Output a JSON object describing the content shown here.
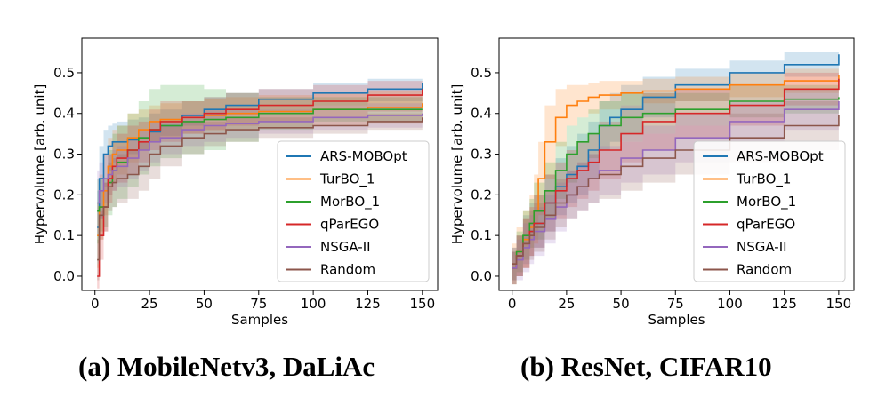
{
  "captions": [
    "(a) MobileNetv3, DaLiAc",
    "(b) ResNet, CIFAR10"
  ],
  "chart_data": [
    {
      "type": "line",
      "title": "",
      "xlabel": "Samples",
      "ylabel": "Hypervolume [arb. unit]",
      "xlim": [
        -6,
        157
      ],
      "ylim": [
        -0.035,
        0.585
      ],
      "xticks": [
        0,
        25,
        50,
        75,
        100,
        125,
        150
      ],
      "yticks": [
        0.0,
        0.1,
        0.2,
        0.3,
        0.4,
        0.5
      ],
      "grid": false,
      "legend_position": "lower right",
      "series": [
        {
          "name": "ARS-MOBOpt",
          "color": "#1f77b4",
          "x": [
            1,
            2,
            4,
            6,
            8,
            10,
            15,
            20,
            25,
            30,
            40,
            50,
            60,
            75,
            100,
            125,
            150
          ],
          "y": [
            0.12,
            0.24,
            0.3,
            0.32,
            0.33,
            0.33,
            0.335,
            0.34,
            0.355,
            0.37,
            0.395,
            0.41,
            0.42,
            0.435,
            0.45,
            0.46,
            0.475
          ],
          "band_low": [
            0.03,
            0.14,
            0.22,
            0.26,
            0.28,
            0.29,
            0.3,
            0.31,
            0.33,
            0.345,
            0.37,
            0.385,
            0.395,
            0.405,
            0.42,
            0.43,
            0.445
          ],
          "band_high": [
            0.21,
            0.32,
            0.36,
            0.37,
            0.375,
            0.38,
            0.385,
            0.39,
            0.4,
            0.41,
            0.43,
            0.44,
            0.45,
            0.46,
            0.475,
            0.485,
            0.5
          ]
        },
        {
          "name": "TurBO_1",
          "color": "#ff7f0e",
          "x": [
            1,
            2,
            4,
            6,
            8,
            10,
            15,
            20,
            25,
            30,
            40,
            50,
            60,
            75,
            100,
            125,
            150
          ],
          "y": [
            0.1,
            0.17,
            0.21,
            0.27,
            0.3,
            0.31,
            0.34,
            0.36,
            0.38,
            0.385,
            0.39,
            0.395,
            0.4,
            0.405,
            0.41,
            0.415,
            0.425
          ],
          "band_low": [
            0.02,
            0.09,
            0.15,
            0.2,
            0.23,
            0.25,
            0.28,
            0.31,
            0.33,
            0.34,
            0.35,
            0.355,
            0.36,
            0.365,
            0.37,
            0.375,
            0.385
          ],
          "band_high": [
            0.18,
            0.25,
            0.3,
            0.34,
            0.36,
            0.37,
            0.4,
            0.41,
            0.42,
            0.425,
            0.43,
            0.435,
            0.44,
            0.445,
            0.45,
            0.455,
            0.465
          ]
        },
        {
          "name": "MorBO_1",
          "color": "#2ca02c",
          "x": [
            1,
            2,
            4,
            6,
            8,
            10,
            15,
            20,
            25,
            30,
            40,
            50,
            60,
            75,
            100,
            125,
            150
          ],
          "y": [
            0.16,
            0.17,
            0.17,
            0.23,
            0.26,
            0.28,
            0.31,
            0.34,
            0.36,
            0.37,
            0.38,
            0.385,
            0.39,
            0.4,
            0.41,
            0.41,
            0.41
          ],
          "band_low": [
            0.08,
            0.11,
            0.12,
            0.15,
            0.17,
            0.19,
            0.22,
            0.25,
            0.27,
            0.29,
            0.3,
            0.31,
            0.33,
            0.36,
            0.38,
            0.38,
            0.38
          ],
          "band_high": [
            0.24,
            0.24,
            0.24,
            0.31,
            0.35,
            0.37,
            0.4,
            0.43,
            0.46,
            0.47,
            0.47,
            0.46,
            0.45,
            0.44,
            0.44,
            0.44,
            0.44
          ]
        },
        {
          "name": "qParEGO",
          "color": "#d62728",
          "x": [
            1,
            2,
            4,
            6,
            8,
            10,
            15,
            20,
            25,
            30,
            40,
            50,
            60,
            75,
            100,
            125,
            150
          ],
          "y": [
            0.0,
            0.1,
            0.17,
            0.24,
            0.27,
            0.29,
            0.31,
            0.33,
            0.36,
            0.38,
            0.39,
            0.4,
            0.41,
            0.42,
            0.43,
            0.445,
            0.46
          ],
          "band_low": [
            -0.03,
            0.04,
            0.11,
            0.18,
            0.21,
            0.23,
            0.25,
            0.28,
            0.31,
            0.33,
            0.35,
            0.36,
            0.37,
            0.38,
            0.39,
            0.405,
            0.42
          ],
          "band_high": [
            0.03,
            0.16,
            0.23,
            0.3,
            0.33,
            0.35,
            0.37,
            0.38,
            0.41,
            0.43,
            0.43,
            0.44,
            0.45,
            0.46,
            0.47,
            0.48,
            0.49
          ]
        },
        {
          "name": "NSGA-II",
          "color": "#9467bd",
          "x": [
            1,
            2,
            4,
            6,
            8,
            10,
            15,
            20,
            25,
            30,
            40,
            50,
            60,
            75,
            100,
            125,
            150
          ],
          "y": [
            0.18,
            0.21,
            0.24,
            0.25,
            0.26,
            0.27,
            0.29,
            0.31,
            0.33,
            0.34,
            0.36,
            0.37,
            0.375,
            0.38,
            0.39,
            0.395,
            0.4
          ],
          "band_low": [
            0.1,
            0.14,
            0.18,
            0.2,
            0.21,
            0.22,
            0.24,
            0.26,
            0.28,
            0.3,
            0.32,
            0.33,
            0.34,
            0.35,
            0.36,
            0.365,
            0.37
          ],
          "band_high": [
            0.26,
            0.28,
            0.3,
            0.3,
            0.31,
            0.32,
            0.34,
            0.36,
            0.38,
            0.38,
            0.4,
            0.41,
            0.41,
            0.41,
            0.42,
            0.425,
            0.43
          ]
        },
        {
          "name": "Random",
          "color": "#8c564b",
          "x": [
            1,
            2,
            4,
            6,
            8,
            10,
            15,
            20,
            25,
            30,
            40,
            50,
            60,
            75,
            100,
            125,
            150
          ],
          "y": [
            0.04,
            0.15,
            0.17,
            0.22,
            0.23,
            0.24,
            0.25,
            0.27,
            0.3,
            0.32,
            0.34,
            0.35,
            0.36,
            0.365,
            0.37,
            0.38,
            0.39
          ],
          "band_low": [
            -0.01,
            0.09,
            0.11,
            0.16,
            0.17,
            0.18,
            0.19,
            0.21,
            0.24,
            0.27,
            0.3,
            0.32,
            0.33,
            0.34,
            0.35,
            0.36,
            0.37
          ],
          "band_high": [
            0.09,
            0.21,
            0.23,
            0.28,
            0.29,
            0.3,
            0.31,
            0.33,
            0.36,
            0.37,
            0.38,
            0.38,
            0.39,
            0.39,
            0.39,
            0.4,
            0.41
          ]
        }
      ]
    },
    {
      "type": "line",
      "title": "",
      "xlabel": "Samples",
      "ylabel": "Hypervolume [arb. unit]",
      "xlim": [
        -6,
        157
      ],
      "ylim": [
        -0.035,
        0.585
      ],
      "xticks": [
        0,
        25,
        50,
        75,
        100,
        125,
        150
      ],
      "yticks": [
        0.0,
        0.1,
        0.2,
        0.3,
        0.4,
        0.5
      ],
      "grid": false,
      "legend_position": "lower right",
      "series": [
        {
          "name": "ARS-MOBOpt",
          "color": "#1f77b4",
          "x": [
            0,
            2,
            5,
            8,
            10,
            15,
            20,
            25,
            30,
            35,
            40,
            45,
            50,
            60,
            75,
            100,
            125,
            150
          ],
          "y": [
            0.03,
            0.05,
            0.09,
            0.11,
            0.13,
            0.18,
            0.22,
            0.25,
            0.27,
            0.31,
            0.37,
            0.39,
            0.41,
            0.44,
            0.47,
            0.5,
            0.52,
            0.545
          ],
          "band_low": [
            -0.01,
            0.0,
            0.03,
            0.05,
            0.07,
            0.11,
            0.15,
            0.18,
            0.2,
            0.24,
            0.31,
            0.33,
            0.35,
            0.39,
            0.43,
            0.47,
            0.49,
            0.52
          ],
          "band_high": [
            0.07,
            0.1,
            0.15,
            0.18,
            0.2,
            0.25,
            0.29,
            0.32,
            0.35,
            0.38,
            0.43,
            0.45,
            0.47,
            0.49,
            0.51,
            0.53,
            0.55,
            0.57
          ]
        },
        {
          "name": "TurBO_1",
          "color": "#ff7f0e",
          "x": [
            0,
            2,
            5,
            8,
            10,
            12,
            15,
            20,
            25,
            30,
            35,
            40,
            50,
            60,
            75,
            100,
            125,
            150
          ],
          "y": [
            0.03,
            0.06,
            0.09,
            0.12,
            0.16,
            0.24,
            0.33,
            0.39,
            0.42,
            0.43,
            0.44,
            0.445,
            0.45,
            0.455,
            0.46,
            0.47,
            0.48,
            0.495
          ],
          "band_low": [
            -0.02,
            0.0,
            0.02,
            0.05,
            0.08,
            0.15,
            0.24,
            0.32,
            0.37,
            0.39,
            0.4,
            0.41,
            0.42,
            0.425,
            0.43,
            0.44,
            0.45,
            0.465
          ],
          "band_high": [
            0.08,
            0.12,
            0.16,
            0.2,
            0.25,
            0.33,
            0.42,
            0.46,
            0.47,
            0.47,
            0.475,
            0.48,
            0.48,
            0.485,
            0.49,
            0.5,
            0.51,
            0.52
          ]
        },
        {
          "name": "MorBO_1",
          "color": "#2ca02c",
          "x": [
            0,
            2,
            5,
            8,
            10,
            15,
            20,
            25,
            30,
            35,
            40,
            50,
            60,
            75,
            100,
            125,
            150
          ],
          "y": [
            0.02,
            0.06,
            0.1,
            0.13,
            0.16,
            0.21,
            0.26,
            0.3,
            0.33,
            0.35,
            0.37,
            0.39,
            0.4,
            0.41,
            0.43,
            0.435,
            0.44
          ],
          "band_low": [
            -0.02,
            0.01,
            0.04,
            0.07,
            0.09,
            0.14,
            0.19,
            0.23,
            0.27,
            0.29,
            0.31,
            0.33,
            0.35,
            0.37,
            0.39,
            0.4,
            0.41
          ],
          "band_high": [
            0.06,
            0.11,
            0.16,
            0.19,
            0.23,
            0.28,
            0.33,
            0.37,
            0.39,
            0.41,
            0.43,
            0.45,
            0.45,
            0.45,
            0.47,
            0.47,
            0.47
          ]
        },
        {
          "name": "qParEGO",
          "color": "#d62728",
          "x": [
            0,
            2,
            5,
            8,
            10,
            15,
            20,
            25,
            30,
            35,
            40,
            50,
            60,
            75,
            100,
            125,
            150
          ],
          "y": [
            0.02,
            0.05,
            0.08,
            0.11,
            0.13,
            0.18,
            0.21,
            0.24,
            0.26,
            0.28,
            0.31,
            0.35,
            0.38,
            0.4,
            0.42,
            0.46,
            0.485
          ],
          "band_low": [
            -0.02,
            0.0,
            0.02,
            0.05,
            0.07,
            0.11,
            0.14,
            0.17,
            0.19,
            0.21,
            0.24,
            0.28,
            0.31,
            0.34,
            0.37,
            0.42,
            0.45
          ],
          "band_high": [
            0.06,
            0.1,
            0.14,
            0.17,
            0.2,
            0.25,
            0.28,
            0.31,
            0.33,
            0.35,
            0.38,
            0.42,
            0.45,
            0.46,
            0.47,
            0.5,
            0.52
          ]
        },
        {
          "name": "NSGA-II",
          "color": "#9467bd",
          "x": [
            0,
            2,
            5,
            8,
            10,
            15,
            20,
            25,
            30,
            35,
            40,
            50,
            60,
            75,
            100,
            125,
            150
          ],
          "y": [
            0.02,
            0.04,
            0.07,
            0.09,
            0.11,
            0.14,
            0.17,
            0.2,
            0.22,
            0.24,
            0.26,
            0.29,
            0.31,
            0.34,
            0.38,
            0.41,
            0.43
          ],
          "band_low": [
            -0.02,
            -0.01,
            0.01,
            0.03,
            0.05,
            0.08,
            0.11,
            0.14,
            0.16,
            0.18,
            0.2,
            0.23,
            0.25,
            0.28,
            0.33,
            0.36,
            0.38
          ],
          "band_high": [
            0.06,
            0.09,
            0.13,
            0.15,
            0.17,
            0.2,
            0.23,
            0.26,
            0.28,
            0.3,
            0.32,
            0.35,
            0.37,
            0.4,
            0.43,
            0.46,
            0.48
          ]
        },
        {
          "name": "Random",
          "color": "#8c564b",
          "x": [
            0,
            2,
            5,
            8,
            10,
            15,
            20,
            25,
            30,
            35,
            40,
            50,
            60,
            75,
            100,
            125,
            150
          ],
          "y": [
            0.03,
            0.05,
            0.08,
            0.1,
            0.12,
            0.15,
            0.18,
            0.2,
            0.22,
            0.24,
            0.25,
            0.27,
            0.29,
            0.31,
            0.34,
            0.37,
            0.395
          ],
          "band_low": [
            -0.01,
            0.0,
            0.02,
            0.04,
            0.06,
            0.09,
            0.12,
            0.14,
            0.16,
            0.18,
            0.19,
            0.21,
            0.23,
            0.25,
            0.28,
            0.31,
            0.34
          ],
          "band_high": [
            0.07,
            0.1,
            0.14,
            0.16,
            0.18,
            0.21,
            0.24,
            0.26,
            0.28,
            0.3,
            0.31,
            0.33,
            0.35,
            0.37,
            0.4,
            0.43,
            0.45
          ]
        }
      ]
    }
  ]
}
